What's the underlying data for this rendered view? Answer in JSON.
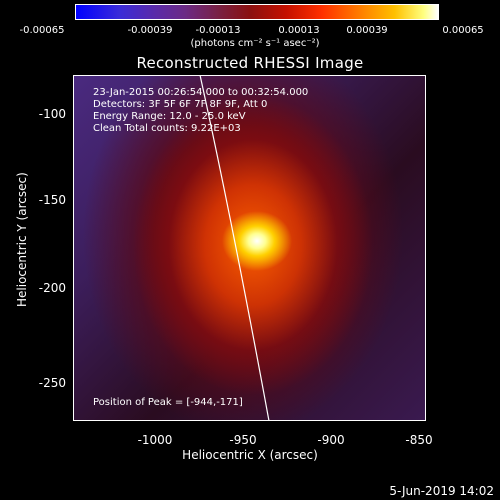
{
  "colorbar": {
    "ticks": [
      "-0.00065",
      "-0.00039",
      "-0.00013",
      "0.00013",
      "0.00039",
      "0.00065"
    ],
    "units": "(photons cm⁻² s⁻¹ asec⁻²)"
  },
  "title": "Reconstructed RHESSI Image",
  "info": {
    "time_range": "23-Jan-2015 00:26:54.000 to 00:32:54.000",
    "detectors": "Detectors: 3F 5F 6F 7F 8F 9F, Att 0",
    "energy": "Energy Range: 12.0 - 25.0 keV",
    "clean": "Clean     Total counts: 9.22E+03"
  },
  "peak_label": "Position of Peak = [-944,-171]",
  "axes": {
    "xlabel": "Heliocentric X (arcsec)",
    "ylabel": "Heliocentric Y (arcsec)",
    "xticks": [
      "-1000",
      "-950",
      "-900",
      "-850"
    ],
    "yticks": [
      "-100",
      "-150",
      "-200",
      "-250"
    ]
  },
  "footer": "5-Jun-2019 14:02",
  "colors": {
    "background": "#000000",
    "text": "#ffffff",
    "limb": "#ffffff"
  }
}
